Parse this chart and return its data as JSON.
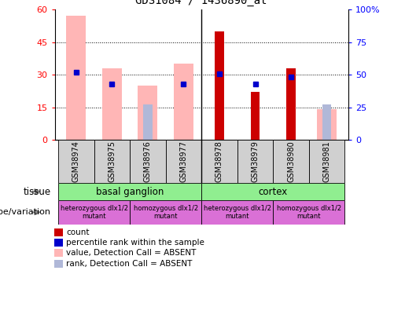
{
  "title": "GDS1084 / 1436890_at",
  "samples": [
    "GSM38974",
    "GSM38975",
    "GSM38976",
    "GSM38977",
    "GSM38978",
    "GSM38979",
    "GSM38980",
    "GSM38981"
  ],
  "count_values": [
    null,
    null,
    null,
    null,
    50,
    22,
    33,
    null
  ],
  "rank_values_pct": [
    52,
    43,
    null,
    43,
    51,
    43,
    48,
    null
  ],
  "absent_value_bars": [
    57,
    33,
    25,
    35,
    null,
    null,
    null,
    14
  ],
  "absent_rank_pct": [
    null,
    null,
    27,
    null,
    null,
    null,
    null,
    27
  ],
  "ylim_left": [
    0,
    60
  ],
  "ylim_right": [
    0,
    100
  ],
  "yticks_left": [
    0,
    15,
    30,
    45,
    60
  ],
  "yticks_right": [
    0,
    25,
    50,
    75,
    100
  ],
  "ytick_labels_left": [
    "0",
    "15",
    "30",
    "45",
    "60"
  ],
  "ytick_labels_right": [
    "0",
    "25",
    "50",
    "75",
    "100%"
  ],
  "color_count": "#cc0000",
  "color_rank": "#0000cc",
  "color_absent_value": "#ffb6b6",
  "color_absent_rank": "#b0b8d8",
  "legend_items": [
    {
      "color": "#cc0000",
      "marker": "s",
      "label": "count"
    },
    {
      "color": "#0000cc",
      "marker": "s",
      "label": "percentile rank within the sample"
    },
    {
      "color": "#ffb6b6",
      "marker": "s",
      "label": "value, Detection Call = ABSENT"
    },
    {
      "color": "#b0b8d8",
      "marker": "s",
      "label": "rank, Detection Call = ABSENT"
    }
  ],
  "tissue_label": "tissue",
  "genotype_label": "genotype/variation",
  "bg_color": "#ffffff",
  "sample_box_color": "#d0d0d0",
  "tissue_color": "#90ee90",
  "geno_color1": "#da70d6",
  "geno_color2": "#da70d6"
}
